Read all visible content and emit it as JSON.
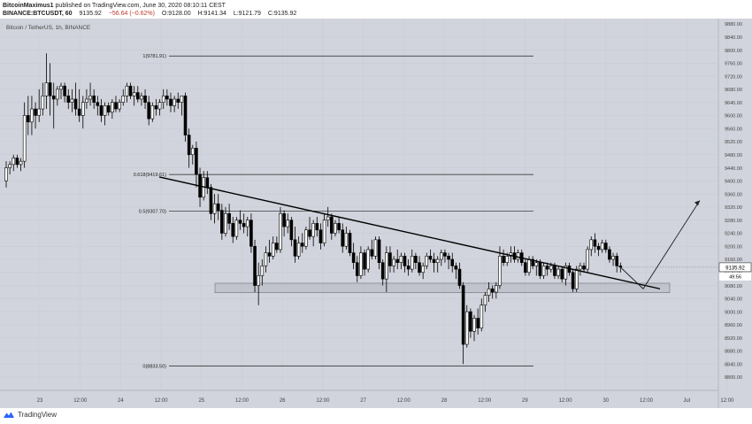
{
  "header": {
    "author": "BitcoinMaximus1",
    "published_text": "published on TradingView.com, June 30, 2020 08:10:11 CEST",
    "symbol_line": "BINANCE:BTCUSDT, 60",
    "last": "9135.92",
    "change": "−56.64 (−0.62%)",
    "open": "O:9128.00",
    "high": "H:9141.34",
    "low": "L:9121.79",
    "close": "C:9135.92"
  },
  "chart_data": {
    "type": "candlestick",
    "title": "Bitcoin / TetherUS, 1h, BINANCE",
    "x_tick_labels": [
      "23",
      "12:00",
      "24",
      "12:00",
      "25",
      "12:00",
      "26",
      "12:00",
      "27",
      "12:00",
      "28",
      "12:00",
      "29",
      "12:00",
      "30",
      "12:00",
      "Jul",
      "12:00"
    ],
    "y_tick_labels": [
      "9880.00",
      "9840.00",
      "9800.00",
      "9760.00",
      "9720.00",
      "9680.00",
      "9640.00",
      "9600.00",
      "9560.00",
      "9520.00",
      "9480.00",
      "9440.00",
      "9400.00",
      "9360.00",
      "9320.00",
      "9280.00",
      "9240.00",
      "9200.00",
      "9160.00",
      "9120.00",
      "9080.00",
      "9040.00",
      "9000.00",
      "8960.00",
      "8920.00",
      "8880.00",
      "8840.00",
      "8800.00"
    ],
    "ylim": [
      8785,
      9895
    ],
    "price_label": "9135.92",
    "countdown_label": "49:56",
    "fibonacci_levels": [
      {
        "ratio": 1,
        "price": 9781.91,
        "label": "1(9781.91)"
      },
      {
        "ratio": 0.618,
        "price": 9419.61,
        "label": "0.618(9419.61)"
      },
      {
        "ratio": 0.5,
        "price": 9307.7,
        "label": "0.5(9307.70)"
      },
      {
        "ratio": 0,
        "price": 8833.5,
        "label": "0(8833.50)"
      }
    ],
    "support_zone": [
      9058,
      9087
    ],
    "trendline": [
      [
        9412,
        9070
      ]
    ],
    "projection": [
      9070,
      9340
    ],
    "candles": [
      [
        9400,
        9460,
        9380,
        9440
      ],
      [
        9440,
        9460,
        9420,
        9450
      ],
      [
        9450,
        9480,
        9430,
        9470
      ],
      [
        9470,
        9480,
        9440,
        9450
      ],
      [
        9450,
        9470,
        9430,
        9460
      ],
      [
        9460,
        9640,
        9440,
        9600
      ],
      [
        9600,
        9660,
        9540,
        9580
      ],
      [
        9580,
        9660,
        9540,
        9620
      ],
      [
        9620,
        9640,
        9560,
        9600
      ],
      [
        9600,
        9680,
        9580,
        9620
      ],
      [
        9620,
        9700,
        9600,
        9660
      ],
      [
        9660,
        9790,
        9620,
        9700
      ],
      [
        9700,
        9760,
        9600,
        9660
      ],
      [
        9660,
        9700,
        9560,
        9650
      ],
      [
        9650,
        9690,
        9630,
        9680
      ],
      [
        9680,
        9700,
        9650,
        9690
      ],
      [
        9690,
        9700,
        9640,
        9660
      ],
      [
        9660,
        9680,
        9620,
        9640
      ],
      [
        9640,
        9680,
        9610,
        9650
      ],
      [
        9650,
        9700,
        9600,
        9620
      ],
      [
        9620,
        9680,
        9580,
        9600
      ],
      [
        9600,
        9660,
        9560,
        9640
      ],
      [
        9640,
        9680,
        9620,
        9650
      ],
      [
        9650,
        9700,
        9630,
        9660
      ],
      [
        9660,
        9680,
        9620,
        9640
      ],
      [
        9640,
        9660,
        9600,
        9630
      ],
      [
        9630,
        9650,
        9580,
        9600
      ],
      [
        9600,
        9640,
        9570,
        9630
      ],
      [
        9630,
        9640,
        9600,
        9610
      ],
      [
        9610,
        9650,
        9590,
        9640
      ],
      [
        9640,
        9660,
        9610,
        9620
      ],
      [
        9620,
        9650,
        9610,
        9640
      ],
      [
        9640,
        9680,
        9630,
        9660
      ],
      [
        9660,
        9700,
        9640,
        9690
      ],
      [
        9690,
        9700,
        9650,
        9660
      ],
      [
        9660,
        9690,
        9630,
        9670
      ],
      [
        9670,
        9690,
        9640,
        9650
      ],
      [
        9650,
        9670,
        9630,
        9660
      ],
      [
        9660,
        9680,
        9620,
        9640
      ],
      [
        9640,
        9660,
        9570,
        9590
      ],
      [
        9590,
        9640,
        9580,
        9630
      ],
      [
        9630,
        9650,
        9600,
        9620
      ],
      [
        9620,
        9650,
        9600,
        9640
      ],
      [
        9640,
        9680,
        9620,
        9660
      ],
      [
        9660,
        9680,
        9630,
        9650
      ],
      [
        9650,
        9670,
        9610,
        9630
      ],
      [
        9630,
        9660,
        9610,
        9650
      ],
      [
        9650,
        9670,
        9620,
        9640
      ],
      [
        9640,
        9660,
        9600,
        9660
      ],
      [
        9660,
        9670,
        9520,
        9540
      ],
      [
        9540,
        9560,
        9440,
        9480
      ],
      [
        9480,
        9510,
        9450,
        9500
      ],
      [
        9500,
        9520,
        9380,
        9420
      ],
      [
        9420,
        9440,
        9320,
        9350
      ],
      [
        9350,
        9430,
        9340,
        9410
      ],
      [
        9410,
        9430,
        9360,
        9380
      ],
      [
        9380,
        9390,
        9280,
        9300
      ],
      [
        9300,
        9360,
        9270,
        9330
      ],
      [
        9330,
        9360,
        9280,
        9310
      ],
      [
        9310,
        9330,
        9220,
        9240
      ],
      [
        9240,
        9320,
        9230,
        9300
      ],
      [
        9300,
        9330,
        9250,
        9270
      ],
      [
        9270,
        9290,
        9210,
        9230
      ],
      [
        9230,
        9290,
        9220,
        9280
      ],
      [
        9280,
        9310,
        9250,
        9270
      ],
      [
        9270,
        9300,
        9240,
        9260
      ],
      [
        9260,
        9290,
        9230,
        9280
      ],
      [
        9280,
        9300,
        9180,
        9200
      ],
      [
        9200,
        9220,
        9060,
        9080
      ],
      [
        9080,
        9150,
        9020,
        9110
      ],
      [
        9110,
        9160,
        9080,
        9140
      ],
      [
        9140,
        9200,
        9120,
        9180
      ],
      [
        9180,
        9220,
        9150,
        9170
      ],
      [
        9170,
        9230,
        9160,
        9210
      ],
      [
        9210,
        9230,
        9180,
        9190
      ],
      [
        9190,
        9320,
        9180,
        9300
      ],
      [
        9300,
        9310,
        9230,
        9260
      ],
      [
        9260,
        9300,
        9240,
        9280
      ],
      [
        9280,
        9290,
        9200,
        9220
      ],
      [
        9220,
        9260,
        9150,
        9170
      ],
      [
        9170,
        9230,
        9160,
        9210
      ],
      [
        9210,
        9240,
        9180,
        9200
      ],
      [
        9200,
        9260,
        9190,
        9250
      ],
      [
        9250,
        9290,
        9220,
        9230
      ],
      [
        9230,
        9280,
        9200,
        9270
      ],
      [
        9270,
        9290,
        9230,
        9250
      ],
      [
        9250,
        9270,
        9190,
        9210
      ],
      [
        9210,
        9300,
        9200,
        9280
      ],
      [
        9280,
        9320,
        9260,
        9290
      ],
      [
        9290,
        9300,
        9220,
        9240
      ],
      [
        9240,
        9280,
        9230,
        9270
      ],
      [
        9270,
        9290,
        9240,
        9250
      ],
      [
        9250,
        9270,
        9180,
        9200
      ],
      [
        9200,
        9260,
        9190,
        9240
      ],
      [
        9240,
        9250,
        9170,
        9180
      ],
      [
        9180,
        9210,
        9130,
        9150
      ],
      [
        9150,
        9170,
        9090,
        9110
      ],
      [
        9110,
        9200,
        9100,
        9180
      ],
      [
        9180,
        9190,
        9110,
        9130
      ],
      [
        9130,
        9200,
        9120,
        9190
      ],
      [
        9190,
        9220,
        9160,
        9170
      ],
      [
        9170,
        9230,
        9160,
        9220
      ],
      [
        9220,
        9230,
        9130,
        9150
      ],
      [
        9150,
        9160,
        9080,
        9100
      ],
      [
        9100,
        9200,
        9060,
        9180
      ],
      [
        9180,
        9200,
        9120,
        9140
      ],
      [
        9140,
        9170,
        9120,
        9160
      ],
      [
        9160,
        9190,
        9130,
        9150
      ],
      [
        9150,
        9180,
        9130,
        9170
      ],
      [
        9170,
        9180,
        9120,
        9140
      ],
      [
        9140,
        9160,
        9110,
        9130
      ],
      [
        9130,
        9190,
        9120,
        9170
      ],
      [
        9170,
        9180,
        9130,
        9150
      ],
      [
        9150,
        9170,
        9110,
        9120
      ],
      [
        9120,
        9150,
        9100,
        9140
      ],
      [
        9140,
        9180,
        9130,
        9170
      ],
      [
        9170,
        9190,
        9150,
        9160
      ],
      [
        9160,
        9180,
        9120,
        9150
      ],
      [
        9150,
        9170,
        9120,
        9160
      ],
      [
        9160,
        9190,
        9140,
        9180
      ],
      [
        9180,
        9190,
        9150,
        9170
      ],
      [
        9170,
        9180,
        9130,
        9160
      ],
      [
        9160,
        9180,
        9120,
        9140
      ],
      [
        9140,
        9150,
        9100,
        9130
      ],
      [
        9130,
        9150,
        9070,
        9080
      ],
      [
        9080,
        9090,
        8840,
        8900
      ],
      [
        8900,
        9020,
        8890,
        9000
      ],
      [
        9000,
        9010,
        8920,
        8940
      ],
      [
        8940,
        8990,
        8910,
        8980
      ],
      [
        8980,
        9010,
        8930,
        8950
      ],
      [
        8950,
        9040,
        8940,
        9020
      ],
      [
        9020,
        9060,
        9000,
        9050
      ],
      [
        9050,
        9090,
        9030,
        9070
      ],
      [
        9070,
        9080,
        9040,
        9060
      ],
      [
        9060,
        9090,
        9040,
        9080
      ],
      [
        9080,
        9200,
        9070,
        9170
      ],
      [
        9170,
        9190,
        9140,
        9150
      ],
      [
        9150,
        9180,
        9140,
        9170
      ],
      [
        9170,
        9200,
        9150,
        9180
      ],
      [
        9180,
        9200,
        9150,
        9160
      ],
      [
        9160,
        9190,
        9150,
        9180
      ],
      [
        9180,
        9190,
        9140,
        9150
      ],
      [
        9150,
        9160,
        9110,
        9120
      ],
      [
        9120,
        9170,
        9110,
        9160
      ],
      [
        9160,
        9170,
        9130,
        9140
      ],
      [
        9140,
        9160,
        9110,
        9150
      ],
      [
        9150,
        9160,
        9100,
        9110
      ],
      [
        9110,
        9150,
        9100,
        9140
      ],
      [
        9140,
        9150,
        9110,
        9130
      ],
      [
        9130,
        9150,
        9120,
        9140
      ],
      [
        9140,
        9150,
        9100,
        9110
      ],
      [
        9110,
        9140,
        9100,
        9130
      ],
      [
        9130,
        9140,
        9090,
        9100
      ],
      [
        9100,
        9150,
        9080,
        9140
      ],
      [
        9140,
        9150,
        9110,
        9120
      ],
      [
        9120,
        9130,
        9060,
        9070
      ],
      [
        9070,
        9140,
        9060,
        9130
      ],
      [
        9130,
        9150,
        9110,
        9140
      ],
      [
        9140,
        9150,
        9120,
        9130
      ],
      [
        9130,
        9200,
        9120,
        9190
      ],
      [
        9190,
        9230,
        9170,
        9220
      ],
      [
        9220,
        9240,
        9180,
        9200
      ],
      [
        9200,
        9210,
        9170,
        9190
      ],
      [
        9190,
        9220,
        9180,
        9210
      ],
      [
        9210,
        9220,
        9180,
        9190
      ],
      [
        9190,
        9200,
        9150,
        9160
      ],
      [
        9160,
        9180,
        9140,
        9170
      ],
      [
        9170,
        9180,
        9120,
        9140
      ],
      [
        9140,
        9150,
        9120,
        9136
      ]
    ]
  },
  "footer": {
    "brand": "TradingView"
  },
  "colors": {
    "background": "#d1d4dc",
    "candle": "#000000",
    "hollow_fill": "#ffffff",
    "support_zone": "#b4b7bf"
  }
}
